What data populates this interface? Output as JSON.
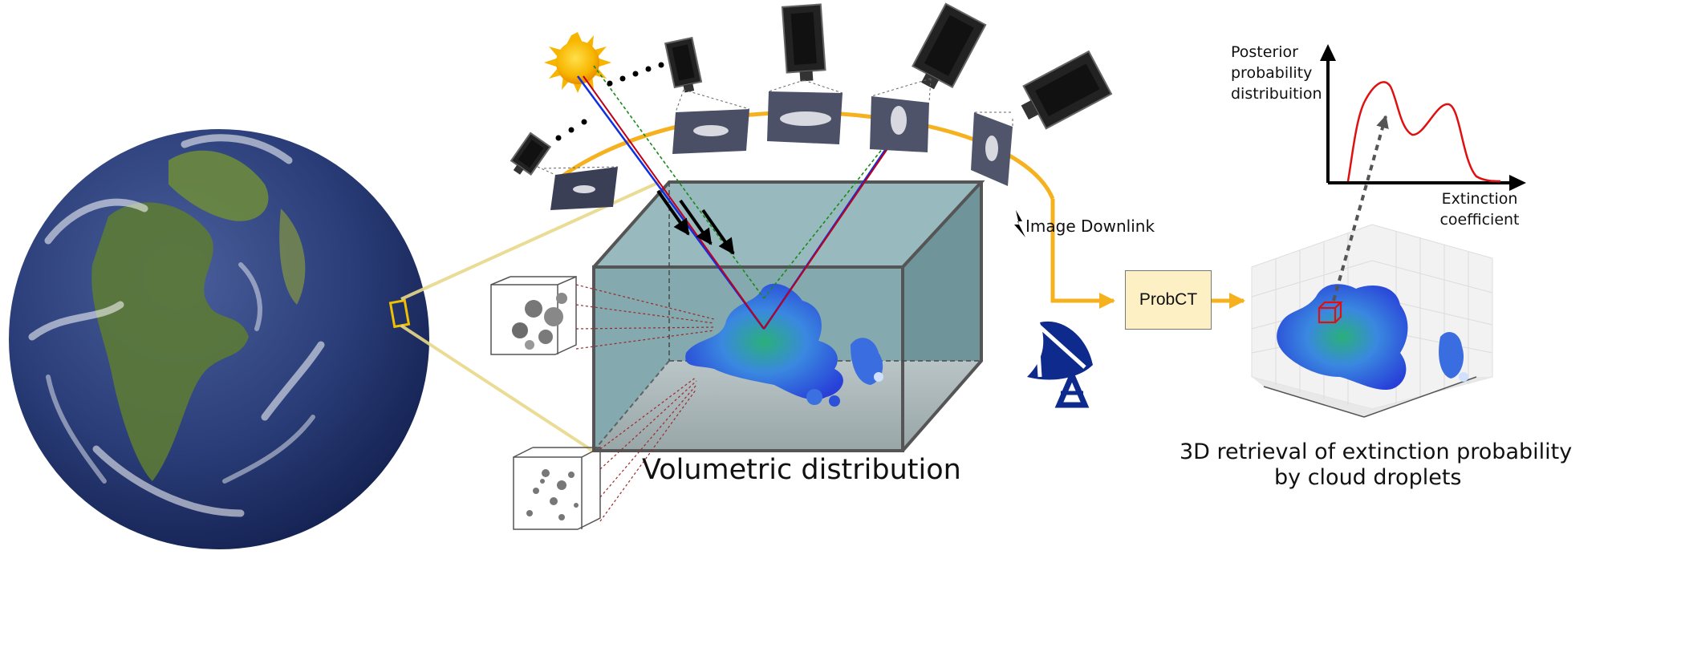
{
  "diagram": {
    "volume_label": "Volumetric distribution",
    "downlink_label": "Image Downlink",
    "processor_label": "ProbCT",
    "retrieval_caption_line1": "3D retrieval of extinction probability",
    "retrieval_caption_line2": "by cloud droplets",
    "posterior_axis_label": "Posterior probability distribuition",
    "extinction_axis_label": "Extinction coefficient",
    "colors": {
      "sun": "#f7b500",
      "orbit": "#f5b11e",
      "ray_red": "#c0001a",
      "ray_blue": "#1030e0",
      "ray_green": "#1a8a1a",
      "volume": "#6f9aa0",
      "antenna": "#0d2a8c",
      "pdf_curve": "#e01010",
      "processor_fill": "#fdf0c4"
    }
  }
}
